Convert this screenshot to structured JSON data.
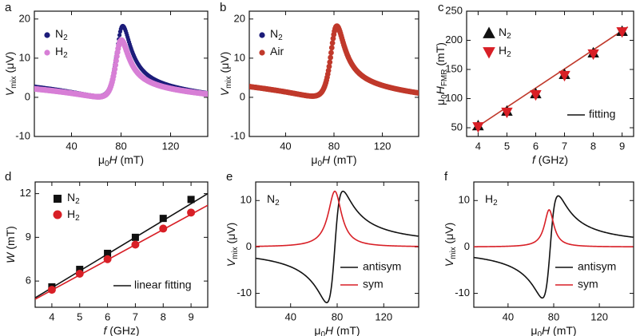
{
  "colors": {
    "navy": "#1c1c7a",
    "pink": "#d77fd6",
    "brick": "#c0392b",
    "red": "#d81f26",
    "black": "#111111"
  },
  "chart_data": [
    {
      "id": "a",
      "type": "scatter",
      "panel_label": "a",
      "xlabel": "μ0H (mT)",
      "ylabel": "Vmix (μV)",
      "xlim": [
        10,
        150
      ],
      "ylim": [
        -10,
        22
      ],
      "xticks": [
        40,
        80,
        120
      ],
      "yticks": [
        -10,
        0,
        10,
        20
      ],
      "legend": "top-left",
      "series": [
        {
          "name": "N2",
          "label_main": "N",
          "label_sub": "2",
          "style": "navy-dots",
          "resonance": {
            "H0": 79,
            "dH": 7,
            "sym": 14.5,
            "antisym": 11.5,
            "offset": 1.5,
            "slope": -0.028
          }
        },
        {
          "name": "H2",
          "label_main": "H",
          "label_sub": "2",
          "style": "pink-dots",
          "resonance": {
            "H0": 78,
            "dH": 6.5,
            "sym": 11.5,
            "antisym": 9.5,
            "offset": 1.2,
            "slope": -0.022
          }
        }
      ]
    },
    {
      "id": "b",
      "type": "scatter",
      "panel_label": "b",
      "xlabel": "μ0H (mT)",
      "ylabel": "Vmix (μV)",
      "xlim": [
        10,
        150
      ],
      "ylim": [
        -10,
        22
      ],
      "xticks": [
        40,
        80,
        120
      ],
      "yticks": [
        -10,
        0,
        10,
        20
      ],
      "legend": "top-left",
      "series": [
        {
          "name": "N2",
          "label_main": "N",
          "label_sub": "2",
          "style": "navy-dots",
          "resonance": {
            "H0": 80,
            "dH": 7,
            "sym": 14.5,
            "antisym": 11.5,
            "offset": 1.5,
            "slope": -0.028
          }
        },
        {
          "name": "Air",
          "label_main": "Air",
          "label_sub": "",
          "style": "brick-dots",
          "resonance": {
            "H0": 80,
            "dH": 7,
            "sym": 14.5,
            "antisym": 11.5,
            "offset": 1.5,
            "slope": -0.028
          }
        }
      ]
    },
    {
      "id": "c",
      "type": "scatter",
      "panel_label": "c",
      "xlabel": "f (GHz)",
      "ylabel": "μ0HFMR (mT)",
      "xlim": [
        3.6,
        9.4
      ],
      "ylim": [
        35,
        250
      ],
      "xticks": [
        4,
        5,
        6,
        7,
        8,
        9
      ],
      "yticks": [
        50,
        100,
        150,
        200,
        250
      ],
      "legend": "top-left",
      "x": [
        4,
        5,
        6,
        7,
        8,
        9
      ],
      "series": [
        {
          "name": "N2",
          "label_main": "N",
          "label_sub": "2",
          "marker": "triangle-up",
          "values": [
            53,
            78,
            108,
            141,
            178,
            215
          ]
        },
        {
          "name": "H2",
          "label_main": "H",
          "label_sub": "2",
          "marker": "triangle-down",
          "values": [
            52,
            77,
            107,
            140,
            177,
            215
          ]
        }
      ],
      "fit": {
        "label": "fitting",
        "x": [
          3.8,
          9.2
        ],
        "y": [
          46,
          223
        ]
      }
    },
    {
      "id": "d",
      "type": "scatter",
      "panel_label": "d",
      "xlabel": "f (GHz)",
      "ylabel": "W (mT)",
      "xlim": [
        3.4,
        9.6
      ],
      "ylim": [
        4.2,
        12.8
      ],
      "xticks": [
        4,
        5,
        6,
        7,
        8,
        9
      ],
      "yticks": [
        6,
        9,
        12
      ],
      "legend": "top-left",
      "x": [
        4,
        5,
        6,
        7,
        8,
        9
      ],
      "series": [
        {
          "name": "N2",
          "label_main": "N",
          "label_sub": "2",
          "marker": "square",
          "values": [
            5.6,
            6.8,
            7.9,
            9.0,
            10.3,
            11.6
          ]
        },
        {
          "name": "H2",
          "label_main": "H",
          "label_sub": "2",
          "marker": "circle",
          "values": [
            5.4,
            6.5,
            7.5,
            8.5,
            9.6,
            10.7
          ]
        }
      ],
      "fit_lines": [
        {
          "name": "N2 fit",
          "x": [
            3.4,
            9.6
          ],
          "y": [
            4.85,
            12.0
          ]
        },
        {
          "name": "H2 fit",
          "x": [
            3.4,
            9.6
          ],
          "y": [
            4.75,
            11.2
          ]
        }
      ],
      "fit_label": "linear fitting"
    },
    {
      "id": "e",
      "type": "line",
      "panel_label": "e",
      "inset_label_main": "N",
      "inset_label_sub": "2",
      "xlabel": "μ0H (mT)",
      "ylabel": "Vmix (μV)",
      "xlim": [
        10,
        150
      ],
      "ylim": [
        -13,
        14
      ],
      "xticks": [
        40,
        80,
        120
      ],
      "yticks": [
        -10,
        0,
        10
      ],
      "legend": "bottom-right",
      "series": [
        {
          "name": "antisym",
          "kind": "antisym",
          "H0": 78,
          "dH": 7,
          "amp": 12,
          "color": "black"
        },
        {
          "name": "sym",
          "kind": "sym",
          "H0": 78,
          "dH": 7,
          "amp": 12,
          "color": "red"
        }
      ]
    },
    {
      "id": "f",
      "type": "line",
      "panel_label": "f",
      "inset_label_main": "H",
      "inset_label_sub": "2",
      "xlabel": "μ0H (mT)",
      "ylabel": "Vmix (μV)",
      "xlim": [
        10,
        150
      ],
      "ylim": [
        -13,
        14
      ],
      "xticks": [
        40,
        80,
        120
      ],
      "yticks": [
        -10,
        0,
        10
      ],
      "legend": "bottom-right",
      "series": [
        {
          "name": "antisym",
          "kind": "antisym",
          "H0": 77,
          "dH": 7,
          "amp": 11,
          "color": "black"
        },
        {
          "name": "sym",
          "kind": "sym",
          "H0": 76,
          "dH": 5,
          "amp": 8,
          "color": "red"
        }
      ]
    }
  ]
}
